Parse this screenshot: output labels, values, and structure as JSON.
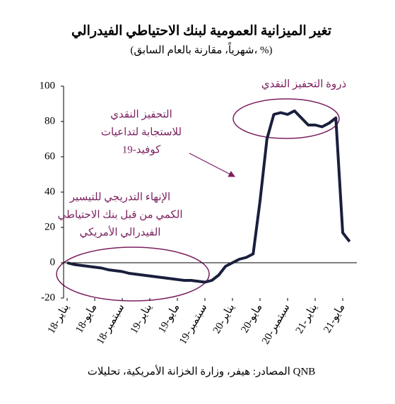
{
  "chart_data": {
    "type": "line",
    "title": "تغير الميزانية العمومية لبنك الاحتياطي الفيدرالي",
    "subtitle": "(شهرياً، مقارنة بالعام السابق، %)",
    "source": "المصادر: هيفر، وزارة الخزانة الأمريكية، تحليلات QNB",
    "categories": [
      "يناير-18",
      null,
      null,
      null,
      "مايو-18",
      null,
      null,
      null,
      "سبتمبر-18",
      null,
      null,
      null,
      "يناير-19",
      null,
      null,
      null,
      "مايو-19",
      null,
      null,
      null,
      "سبتمبر-19",
      null,
      null,
      null,
      "يناير-20",
      null,
      null,
      null,
      "مايو-20",
      null,
      null,
      null,
      "سبتمبر-20",
      null,
      null,
      null,
      "يناير-21",
      null,
      null,
      null,
      "مايو-21",
      null
    ],
    "series": [
      {
        "color": "#1a1f3d",
        "values": [
          0,
          -1,
          -1.5,
          -2,
          -2.5,
          -3,
          -4,
          -4.5,
          -5,
          -6,
          -6.5,
          -7,
          -7.5,
          -8,
          -8.5,
          -9,
          -9.5,
          -10,
          -10,
          -10.5,
          -11,
          -10,
          -7,
          -2,
          0,
          2,
          3,
          5,
          35,
          70,
          84,
          85,
          84,
          86,
          82,
          78,
          78,
          77,
          79,
          82,
          17,
          12
        ]
      }
    ],
    "ylim": [
      -20,
      100
    ],
    "yticks": [
      -20,
      0,
      20,
      40,
      60,
      80,
      100
    ],
    "annotations": [
      {
        "lines": [
          "ذروة التحفيز النقدي"
        ]
      },
      {
        "lines": [
          "التحفيز النقدي",
          "للاستجابة لتداعيات",
          "كوفيد-19"
        ]
      },
      {
        "lines": [
          "الإنهاء التدريجي للتيسير",
          "الكمي من قبل بنك الاحتياطي",
          "الفيدرالي الأمريكي"
        ]
      }
    ],
    "annotation_color": "#7b1f5e"
  }
}
